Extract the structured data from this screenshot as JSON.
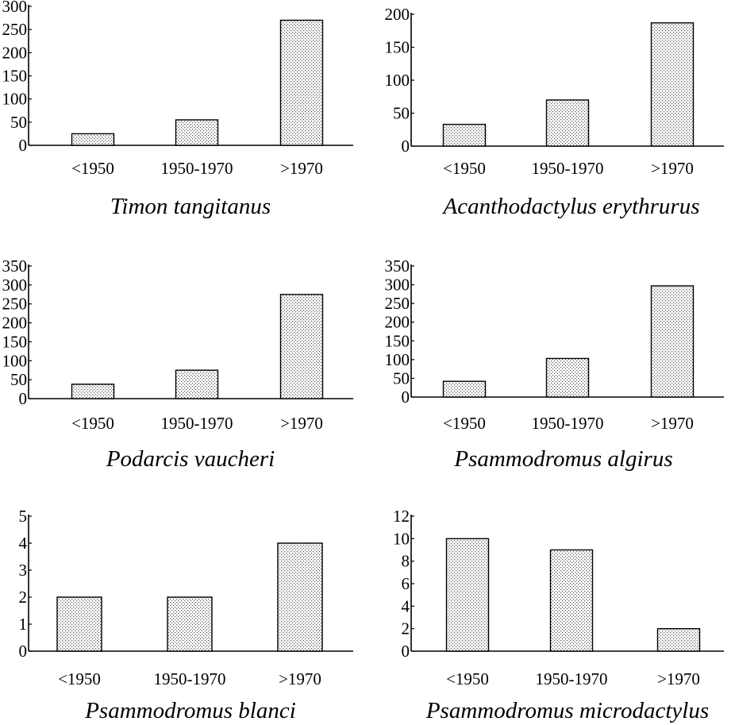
{
  "chart_data": [
    {
      "type": "bar",
      "title": "Timon tangitanus",
      "categories": [
        "<1950",
        "1950-1970",
        ">1970"
      ],
      "values": [
        25,
        55,
        270
      ],
      "yticks": [
        "0",
        "50",
        "100",
        "150",
        "200",
        "250",
        "300"
      ],
      "ylim": [
        0,
        300
      ],
      "grid": false
    },
    {
      "type": "bar",
      "title": "Acanthodactylus erythrurus",
      "categories": [
        "<1950",
        "1950-1970",
        ">1970"
      ],
      "values": [
        33,
        70,
        187
      ],
      "yticks": [
        "0",
        "50",
        "100",
        "150",
        "200"
      ],
      "ylim": [
        0,
        200
      ],
      "grid": false
    },
    {
      "type": "bar",
      "title": "Podarcis vaucheri",
      "categories": [
        "<1950",
        "1950-1970",
        ">1970"
      ],
      "values": [
        38,
        75,
        275
      ],
      "yticks": [
        "0",
        "50",
        "100",
        "150",
        "200",
        "250",
        "300",
        "350"
      ],
      "ylim": [
        0,
        350
      ],
      "grid": false
    },
    {
      "type": "bar",
      "title": "Psammodromus algirus",
      "categories": [
        "<1950",
        "1950-1970",
        ">1970"
      ],
      "values": [
        42,
        103,
        297
      ],
      "yticks": [
        "0",
        "50",
        "100",
        "150",
        "200",
        "250",
        "300",
        "350"
      ],
      "ylim": [
        0,
        350
      ],
      "grid": false
    },
    {
      "type": "bar",
      "title": "Psammodromus blanci",
      "categories": [
        "<1950",
        "1950-1970",
        ">1970"
      ],
      "values": [
        2,
        2,
        4
      ],
      "yticks": [
        "0",
        "1",
        "2",
        "3",
        "4",
        "5"
      ],
      "ylim": [
        0,
        5
      ],
      "grid": false
    },
    {
      "type": "bar",
      "title": "Psammodromus microdactylus",
      "categories": [
        "<1950",
        "1950-1970",
        ">1970"
      ],
      "values": [
        10,
        9,
        2
      ],
      "yticks": [
        "0",
        "2",
        "4",
        "6",
        "8",
        "10",
        "12"
      ],
      "ylim": [
        0,
        12
      ],
      "grid": false
    }
  ]
}
